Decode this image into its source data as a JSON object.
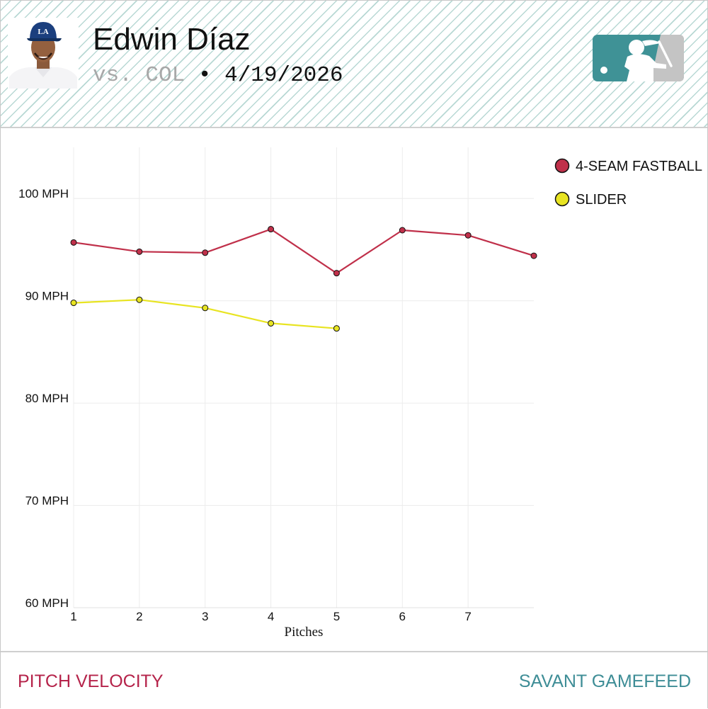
{
  "header": {
    "player_name": "Edwin Díaz",
    "opponent": "vs. COL",
    "separator": "•",
    "date": "4/19/2026",
    "team_cap_letters": "LA"
  },
  "footer": {
    "left_label": "PITCH VELOCITY",
    "right_label": "SAVANT GAMEFEED"
  },
  "colors": {
    "fastball": "#c0304a",
    "slider": "#e8e422",
    "footer_left": "#b5234a",
    "footer_right": "#3e8d96",
    "logo_teal": "#3f9296",
    "logo_gray": "#c4c4c4"
  },
  "chart_data": {
    "type": "line",
    "xlabel": "Pitches",
    "ylabel": "",
    "ylim": [
      60,
      105
    ],
    "xlim": [
      1,
      8
    ],
    "y_ticks": [
      {
        "value": 100,
        "label": "100 MPH"
      },
      {
        "value": 90,
        "label": "90 MPH"
      },
      {
        "value": 80,
        "label": "80 MPH"
      },
      {
        "value": 70,
        "label": "70 MPH"
      },
      {
        "value": 60,
        "label": "60 MPH"
      }
    ],
    "x_ticks": [
      {
        "value": 1,
        "label": "1"
      },
      {
        "value": 2,
        "label": "2"
      },
      {
        "value": 3,
        "label": "3"
      },
      {
        "value": 4,
        "label": "4"
      },
      {
        "value": 5,
        "label": "5"
      },
      {
        "value": 6,
        "label": "6"
      },
      {
        "value": 7,
        "label": "7"
      }
    ],
    "legend_position": "top-right",
    "grid": true,
    "series": [
      {
        "name": "4-SEAM FASTBALL",
        "color": "#c0304a",
        "x": [
          1,
          2,
          3,
          4,
          5,
          6,
          7,
          8
        ],
        "values": [
          95.7,
          94.8,
          94.7,
          97.0,
          92.7,
          96.9,
          96.4,
          94.4
        ]
      },
      {
        "name": "SLIDER",
        "color": "#e8e422",
        "x": [
          1,
          2,
          3,
          4,
          5
        ],
        "values": [
          89.8,
          90.1,
          89.3,
          87.8,
          87.3
        ]
      }
    ]
  }
}
